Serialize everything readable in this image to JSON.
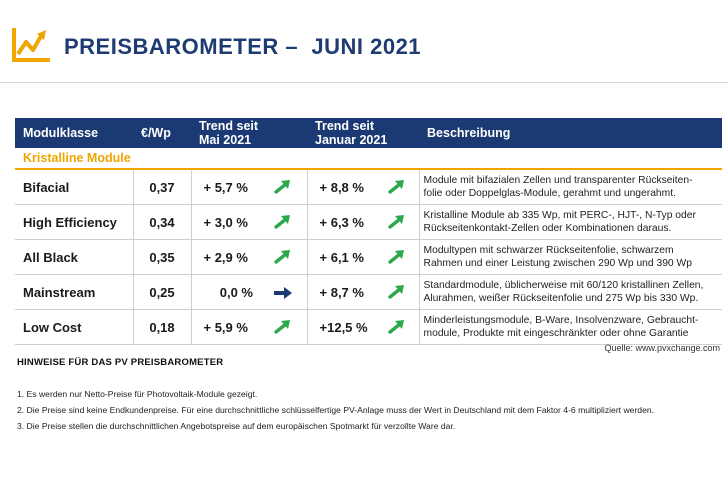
{
  "header": {
    "title": "PREISBAROMETER –  JUNI 2021"
  },
  "table": {
    "columns": [
      "Modulklasse",
      "€/Wp",
      "Trend seit",
      "Mai 2021",
      "Trend seit",
      "Januar 2021",
      "Beschreibung"
    ],
    "section_label": "Kristalline Module",
    "rows": [
      {
        "name": "Bifacial",
        "price": "0,37",
        "trend_mai": "+ 5,7 %",
        "arrow_mai": "up-right-icon",
        "trend_jan": "+ 8,8 %",
        "arrow_jan": "up-right-icon",
        "desc_1": "Module mit bifazialen Zellen und transparenter Rückseiten-",
        "desc_2": "folie oder Doppelglas-Module, gerahmt und ungerahmt."
      },
      {
        "name": "High Efficiency",
        "price": "0,34",
        "trend_mai": "+ 3,0 %",
        "arrow_mai": "up-right-icon",
        "trend_jan": "+ 6,3 %",
        "arrow_jan": "up-right-icon",
        "desc_1": "Kristalline Module ab 335 Wp, mit PERC-, HJT-, N-Typ oder",
        "desc_2": "Rückseitenkontakt-Zellen oder Kombinationen daraus."
      },
      {
        "name": "All Black",
        "price": "0,35",
        "trend_mai": "+ 2,9 %",
        "arrow_mai": "up-right-icon",
        "trend_jan": "+ 6,1 %",
        "arrow_jan": "up-right-icon",
        "desc_1": "Modultypen mit schwarzer Rückseitenfolie, schwarzem",
        "desc_2": "Rahmen und einer Leistung  zwischen 290 Wp und 390 Wp"
      },
      {
        "name": "Mainstream",
        "price": "0,25",
        "trend_mai": "0,0 %",
        "arrow_mai": "right-arrow-icon",
        "trend_jan": "+ 8,7 %",
        "arrow_jan": "up-right-icon",
        "desc_1": "Standardmodule, üblicherweise mit 60/120 kristallinen Zellen,",
        "desc_2": "Alurahmen, weißer Rückseitenfolie und 275 Wp bis 330 Wp."
      },
      {
        "name": "Low Cost",
        "price": "0,18",
        "trend_mai": "+ 5,9 %",
        "arrow_mai": "up-right-icon",
        "trend_jan": "+12,5 %",
        "arrow_jan": "up-right-icon",
        "desc_1": "Minderleistungsmodule, B-Ware, Insolvenzware, Gebraucht-",
        "desc_2": "module, Produkte mit eingeschränkter oder ohne Garantie"
      }
    ]
  },
  "source": "Quelle: www.pvxchange.com",
  "notes": {
    "heading": "HINWEISE FÜR DAS PV PREISBAROMETER",
    "items": [
      "1.  Es werden nur Netto-Preise für Photovoltaik-Module gezeigt.",
      "2. Die Preise sind keine Endkundenpreise. Für eine durchschnittliche schlüsselfertige PV-Anlage muss der Wert in Deutschland mit dem Faktor 4-6 multipliziert werden.",
      "3. Die Preise stellen die durchschnittlichen Angebotspreise auf dem europäischen Spotmarkt für verzollte Ware dar."
    ]
  },
  "colors": {
    "navy": "#1b3a73",
    "orange": "#f0a500",
    "green": "#2aa84a",
    "arrow_navy": "#1b3a73"
  }
}
